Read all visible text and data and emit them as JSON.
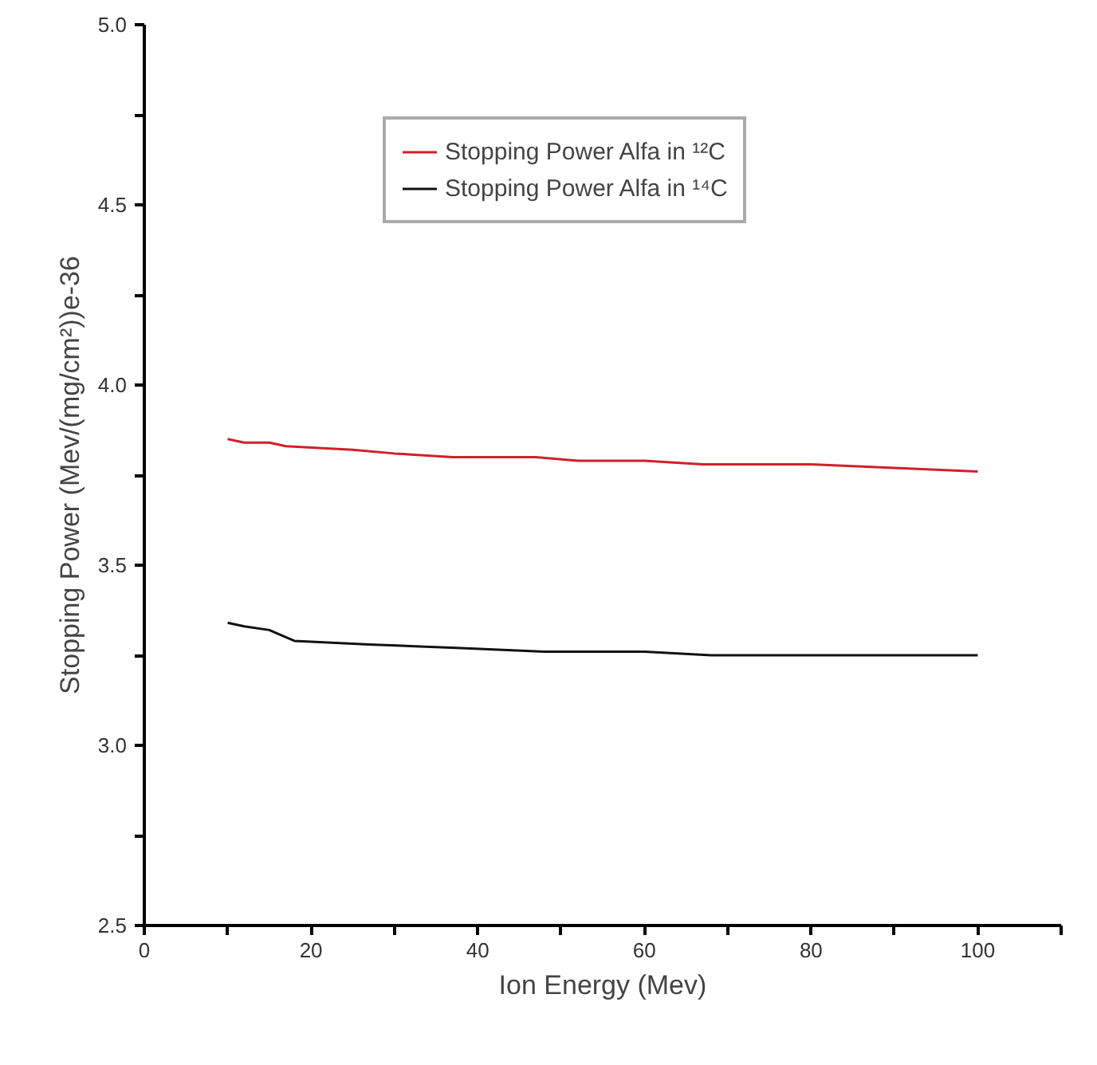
{
  "chart_data": {
    "type": "line",
    "xlabel": "Ion Energy (Mev)",
    "ylabel": "Stopping Power (Mev/(mg/cm²))e-36",
    "x": [
      10,
      12,
      15,
      17,
      25,
      30,
      37,
      47,
      52,
      60,
      67,
      80,
      90,
      100
    ],
    "series": [
      {
        "name": "Stopping Power Alfa in ¹²C",
        "color": "#d0202a",
        "values": [
          3.85,
          3.84,
          3.84,
          3.83,
          3.82,
          3.81,
          3.8,
          3.8,
          3.79,
          3.79,
          3.78,
          3.78,
          3.77,
          3.76
        ]
      },
      {
        "name": "Stopping Power Alfa in ¹⁴C",
        "color": "#111111",
        "x": [
          10,
          12,
          15,
          18,
          27,
          38,
          48,
          60,
          68,
          100
        ],
        "values": [
          3.34,
          3.33,
          3.32,
          3.29,
          3.28,
          3.27,
          3.26,
          3.26,
          3.25,
          3.25
        ]
      }
    ],
    "xlim": [
      0,
      110
    ],
    "ylim": [
      2.5,
      5.0
    ],
    "xticks": [
      0,
      {
        "value": 10,
        "label": null
      },
      20,
      {
        "value": 30,
        "label": null
      },
      40,
      {
        "value": 50,
        "label": null
      },
      60,
      {
        "value": 70,
        "label": null
      },
      80,
      {
        "value": 90,
        "label": null
      },
      100,
      {
        "value": 110,
        "label": null
      }
    ],
    "yticks": [
      {
        "value": 2.5,
        "label": "2.5"
      },
      {
        "value": 2.75,
        "label": null
      },
      {
        "value": 3.0,
        "label": "3.0"
      },
      {
        "value": 3.25,
        "label": null
      },
      {
        "value": 3.5,
        "label": "3.5"
      },
      {
        "value": 3.75,
        "label": null
      },
      {
        "value": 4.0,
        "label": "4.0"
      },
      {
        "value": 4.25,
        "label": null
      },
      {
        "value": 4.5,
        "label": "4.5"
      },
      {
        "value": 4.75,
        "label": null
      },
      {
        "value": 5.0,
        "label": "5.0"
      }
    ],
    "grid": false,
    "legend": "top",
    "line_style": "solid",
    "marker": "none"
  }
}
